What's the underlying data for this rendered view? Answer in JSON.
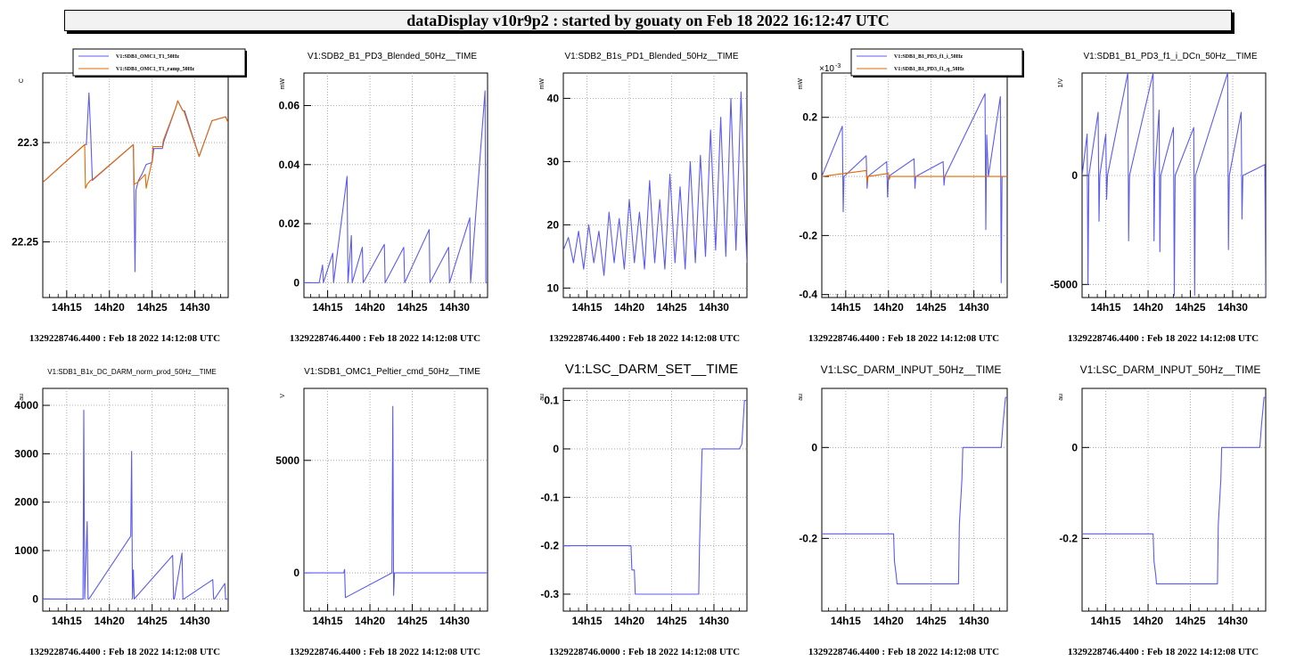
{
  "header": {
    "title": "dataDisplay v10r9p2 : started by gouaty on Feb 18 2022 16:12:47 UTC"
  },
  "colors": {
    "blue": "#5b5bf0",
    "orange": "#e36a00",
    "grid": "#999999"
  },
  "chart_data": [
    {
      "type": "line",
      "title": "",
      "ylabel": "C",
      "legend": [
        "V1:SDB1_OMC1_T1_50Hz",
        "V1:SDB1_OMC1_T1_ramp_50Hz"
      ],
      "xticks": [
        "14h15",
        "14h20",
        "14h25",
        "14h30"
      ],
      "yticks": [
        22.25,
        22.3
      ],
      "ytick_labels": [
        "22.25",
        "22.3"
      ],
      "ylim": [
        22.222,
        22.335
      ],
      "footer": "1329228746.4400 : Feb 18 2022 14:12:08 UTC",
      "series": [
        {
          "color": "blue",
          "x": [
            12.2,
            17.1,
            17.3,
            17.6,
            17.8,
            18.0,
            22.8,
            23.0,
            23.1,
            23.4,
            23.8,
            24.3,
            25.0,
            25.2,
            26.2,
            26.4,
            27.8,
            28.0,
            28.6,
            28.8,
            30.5,
            32.0,
            33.6,
            33.9
          ],
          "y": [
            22.28,
            22.299,
            22.299,
            22.325,
            22.305,
            22.281,
            22.299,
            22.235,
            22.276,
            22.281,
            22.284,
            22.289,
            22.29,
            22.297,
            22.297,
            22.301,
            22.318,
            22.321,
            22.316,
            22.316,
            22.293,
            22.311,
            22.313,
            22.31
          ]
        },
        {
          "color": "orange",
          "x": [
            12.2,
            17.1,
            17.2,
            17.4,
            17.8,
            18.2,
            22.8,
            22.9,
            23.3,
            24.2,
            24.3,
            25.0,
            25.1,
            26.2,
            26.3,
            27.8,
            28.0,
            28.6,
            28.7,
            30.5,
            32.0,
            33.6,
            33.9
          ],
          "y": [
            22.28,
            22.299,
            22.277,
            22.279,
            22.281,
            22.282,
            22.299,
            22.279,
            22.28,
            22.284,
            22.277,
            22.291,
            22.298,
            22.298,
            22.301,
            22.318,
            22.321,
            22.316,
            22.316,
            22.293,
            22.311,
            22.313,
            22.31
          ]
        }
      ]
    },
    {
      "type": "line",
      "title": "V1:SDB2_B1_PD3_Blended_50Hz__TIME",
      "ylabel": "mW",
      "xticks": [
        "14h15",
        "14h20",
        "14h25",
        "14h30"
      ],
      "yticks": [
        0,
        0.02,
        0.04,
        0.06
      ],
      "ytick_labels": [
        "0",
        "0.02",
        "0.04",
        "0.06"
      ],
      "ylim": [
        -0.005,
        0.071
      ],
      "footer": "1329228746.4400 : Feb 18 2022 14:12:08 UTC",
      "series": [
        {
          "color": "blue",
          "x": [
            12.2,
            14.0,
            14.4,
            14.5,
            15.6,
            15.7,
            17.3,
            17.4,
            17.8,
            17.9,
            19.1,
            19.2,
            21.7,
            21.8,
            24.0,
            24.1,
            27.0,
            27.1,
            29.3,
            29.4,
            31.8,
            31.9,
            33.6,
            33.7,
            33.9
          ],
          "y": [
            0.0,
            0.0,
            0.006,
            0.0,
            0.01,
            0.0,
            0.036,
            0.0,
            0.016,
            0.0,
            0.012,
            0.0,
            0.013,
            0.0,
            0.012,
            0.0,
            0.018,
            0.0,
            0.012,
            0.0,
            0.022,
            0.0,
            0.065,
            0.0,
            0.0
          ]
        }
      ]
    },
    {
      "type": "line",
      "title": "V1:SDB2_B1s_PD1_Blended_50Hz__TIME",
      "ylabel": "mW",
      "xticks": [
        "14h15",
        "14h20",
        "14h25",
        "14h30"
      ],
      "yticks": [
        10,
        20,
        30,
        40
      ],
      "ytick_labels": [
        "10",
        "20",
        "30",
        "40"
      ],
      "ylim": [
        8.5,
        44
      ],
      "footer": "1329228746.4400 : Feb 18 2022 14:12:08 UTC",
      "series": [
        {
          "color": "blue",
          "x": [
            12.2,
            12.8,
            13.4,
            14.0,
            14.6,
            15.2,
            15.8,
            16.4,
            17.0,
            17.6,
            18.2,
            18.8,
            19.4,
            20.0,
            20.6,
            21.2,
            21.8,
            22.4,
            23.0,
            23.6,
            24.2,
            24.8,
            25.4,
            26.0,
            26.6,
            27.2,
            27.8,
            28.4,
            29.0,
            29.6,
            30.2,
            30.8,
            31.4,
            32.0,
            32.6,
            33.2,
            33.6,
            33.9
          ],
          "y": [
            16,
            18,
            14,
            19,
            13,
            20,
            14,
            19,
            12,
            22,
            14,
            21,
            13,
            24,
            14,
            22,
            13,
            27,
            14,
            24,
            13,
            28,
            14,
            26,
            13,
            30,
            14,
            31,
            15,
            35,
            16,
            37,
            15,
            40,
            16,
            41,
            24,
            14
          ]
        }
      ]
    },
    {
      "type": "line",
      "title": "",
      "ylabel": "mW",
      "exponent": "×10",
      "exponent_power": "-3",
      "legend": [
        "V1:SDB1_B1_PD3_f1_i_50Hz",
        "V1:SDB1_B1_PD3_f1_q_50Hz"
      ],
      "xticks": [
        "14h15",
        "14h20",
        "14h25",
        "14h30"
      ],
      "yticks": [
        -0.4,
        -0.2,
        0,
        0.2
      ],
      "ytick_labels": [
        "-0.4",
        "-0.2",
        "0",
        "0.2"
      ],
      "ylim": [
        -0.41,
        0.35
      ],
      "footer": "1329228746.4400 : Feb 18 2022 14:12:08 UTC",
      "series": [
        {
          "color": "blue",
          "x": [
            12.2,
            14.6,
            14.7,
            14.8,
            17.4,
            17.5,
            17.6,
            19.8,
            19.9,
            20.0,
            23.0,
            23.1,
            23.2,
            26.4,
            26.5,
            26.6,
            31.3,
            31.4,
            31.5,
            31.7,
            33.1,
            33.2,
            33.3,
            33.9
          ],
          "y": [
            0,
            0.17,
            -0.12,
            0,
            0.07,
            -0.04,
            0,
            0.05,
            -0.07,
            0,
            0.06,
            -0.04,
            0,
            0.05,
            -0.03,
            0,
            0.28,
            -0.18,
            0.14,
            0,
            0.27,
            -0.36,
            0,
            0
          ]
        },
        {
          "color": "orange",
          "x": [
            12.2,
            17.4,
            17.5,
            17.6,
            20.0,
            20.1,
            20.2,
            33.9
          ],
          "y": [
            0,
            0.02,
            -0.02,
            0,
            0.01,
            -0.01,
            0,
            0
          ]
        }
      ]
    },
    {
      "type": "line",
      "title": "V1:SDB1_B1_PD3_f1_i_DCn_50Hz__TIME",
      "ylabel": "1/V",
      "xticks": [
        "14h15",
        "14h20",
        "14h25",
        "14h30"
      ],
      "yticks": [
        -5000,
        0
      ],
      "ytick_labels": [
        "-5000",
        "0"
      ],
      "ylim": [
        -5600,
        4700
      ],
      "footer": "1329228746.4400 : Feb 18 2022 14:12:08 UTC",
      "series": [
        {
          "color": "blue",
          "x": [
            12.2,
            12.8,
            12.9,
            13.0,
            14.1,
            14.2,
            14.3,
            15.0,
            15.1,
            15.2,
            17.6,
            17.7,
            17.8,
            20.6,
            20.7,
            20.8,
            21.3,
            21.4,
            21.5,
            23.0,
            23.1,
            23.2,
            25.4,
            25.5,
            25.6,
            29.4,
            29.5,
            29.6,
            31.0,
            31.1,
            31.2,
            33.8,
            33.9
          ],
          "y": [
            0,
            1900,
            -5000,
            0,
            2900,
            -2100,
            0,
            1900,
            -1100,
            0,
            4700,
            -3000,
            0,
            4700,
            -3000,
            0,
            3000,
            -3500,
            0,
            2200,
            -5500,
            0,
            2200,
            -5500,
            0,
            4700,
            -3400,
            0,
            2900,
            -2000,
            0,
            500,
            -5500
          ]
        }
      ]
    },
    {
      "type": "line",
      "title": "V1:SDB1_B1x_DC_DARM_norm_prod_50Hz__TIME",
      "ylabel": "au",
      "xticks": [
        "14h15",
        "14h20",
        "14h25",
        "14h30"
      ],
      "yticks": [
        0,
        1000,
        2000,
        3000,
        4000
      ],
      "ytick_labels": [
        "0",
        "1000",
        "2000",
        "3000",
        "4000"
      ],
      "ylim": [
        -250,
        4350
      ],
      "footer": "1329228746.4400 : Feb 18 2022 14:12:08 UTC",
      "series": [
        {
          "color": "blue",
          "x": [
            12.2,
            16.9,
            17.0,
            17.1,
            17.4,
            17.5,
            17.6,
            22.5,
            22.6,
            22.7,
            22.8,
            22.9,
            27.4,
            27.5,
            27.6,
            28.5,
            28.6,
            28.7,
            32.1,
            32.2,
            32.3,
            33.5,
            33.6,
            33.7,
            33.9
          ],
          "y": [
            0,
            0,
            3900,
            0,
            1600,
            0,
            0,
            1300,
            3050,
            0,
            600,
            0,
            900,
            0,
            0,
            950,
            0,
            0,
            400,
            0,
            0,
            320,
            0,
            0,
            0
          ]
        }
      ]
    },
    {
      "type": "line",
      "title": "V1:SDB1_OMC1_Peltier_cmd_50Hz__TIME",
      "ylabel": "V",
      "xticks": [
        "14h15",
        "14h20",
        "14h25",
        "14h30"
      ],
      "yticks": [
        0,
        5000
      ],
      "ytick_labels": [
        "0",
        "5000"
      ],
      "ylim": [
        -1700,
        8200
      ],
      "footer": "1329228746.4400 : Feb 18 2022 14:12:08 UTC",
      "series": [
        {
          "color": "blue",
          "x": [
            12.2,
            16.9,
            17.0,
            17.1,
            22.6,
            22.7,
            22.8,
            22.9,
            33.9
          ],
          "y": [
            0,
            0,
            150,
            -1100,
            0,
            7400,
            -1000,
            0,
            0
          ]
        }
      ]
    },
    {
      "type": "line",
      "title": "V1:LSC_DARM_SET__TIME",
      "ylabel": "au",
      "xticks": [
        "14h15",
        "14h20",
        "14h25",
        "14h30"
      ],
      "yticks": [
        -0.3,
        -0.2,
        -0.1,
        0,
        0.1
      ],
      "ytick_labels": [
        "-0.3",
        "-0.2",
        "-0.1",
        "0",
        "0.1"
      ],
      "ylim": [
        -0.335,
        0.125
      ],
      "footer": "1329228746.0000 : Feb 18 2022 14:12:08 UTC",
      "series": [
        {
          "color": "blue",
          "x": [
            12.2,
            20.2,
            20.3,
            20.6,
            20.7,
            28.2,
            28.3,
            28.6,
            33.0,
            33.3,
            33.6,
            33.9
          ],
          "y": [
            -0.2,
            -0.2,
            -0.25,
            -0.25,
            -0.3,
            -0.3,
            -0.2,
            0,
            0,
            0.01,
            0.1,
            0.1
          ]
        }
      ]
    },
    {
      "type": "line",
      "title": "V1:LSC_DARM_INPUT_50Hz__TIME",
      "ylabel": "au",
      "xticks": [
        "14h15",
        "14h20",
        "14h25",
        "14h30"
      ],
      "yticks": [
        -0.2,
        0
      ],
      "ytick_labels": [
        "-0.2",
        "0"
      ],
      "ylim": [
        -0.36,
        0.13
      ],
      "footer": "1329228746.4400 : Feb 18 2022 14:12:08 UTC",
      "series": [
        {
          "color": "blue",
          "x": [
            12.2,
            20.6,
            20.7,
            20.9,
            21.0,
            28.2,
            28.3,
            28.6,
            28.7,
            33.2,
            33.4,
            33.6,
            33.7,
            33.9
          ],
          "y": [
            -0.19,
            -0.19,
            -0.25,
            -0.28,
            -0.3,
            -0.3,
            -0.17,
            -0.07,
            0.0,
            0.0,
            0.05,
            0.09,
            0.11,
            0.11
          ]
        }
      ]
    },
    {
      "type": "line",
      "title": "V1:LSC_DARM_INPUT_50Hz__TIME",
      "ylabel": "au",
      "xticks": [
        "14h15",
        "14h20",
        "14h25",
        "14h30"
      ],
      "yticks": [
        -0.2,
        0
      ],
      "ytick_labels": [
        "-0.2",
        "0"
      ],
      "ylim": [
        -0.36,
        0.13
      ],
      "footer": "1329228746.4400 : Feb 18 2022 14:12:08 UTC",
      "series": [
        {
          "color": "blue",
          "x": [
            12.2,
            20.6,
            20.7,
            20.9,
            21.0,
            28.2,
            28.3,
            28.6,
            28.7,
            33.2,
            33.4,
            33.6,
            33.7,
            33.9
          ],
          "y": [
            -0.19,
            -0.19,
            -0.25,
            -0.28,
            -0.3,
            -0.3,
            -0.17,
            -0.07,
            0.0,
            0.0,
            0.05,
            0.09,
            0.11,
            0.11
          ]
        }
      ]
    }
  ]
}
